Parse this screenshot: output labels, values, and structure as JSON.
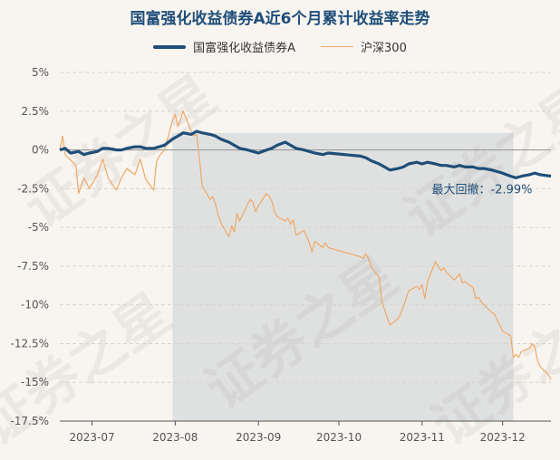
{
  "chart_data": {
    "type": "line",
    "title": "国富强化收益债券A近6个月累计收益率走势",
    "yticks": [
      "5%",
      "2.5%",
      "0%",
      "-2.5%",
      "-5%",
      "-7.5%",
      "-10%",
      "-12.5%",
      "-15%",
      "-17.5%"
    ],
    "ylim": [
      -17.5,
      5
    ],
    "xlim": [
      "2023-06-19",
      "2023-12-19"
    ],
    "xticks": [
      {
        "label": "2023-07",
        "date": "2023-07-01"
      },
      {
        "label": "2023-08",
        "date": "2023-08-01"
      },
      {
        "label": "2023-09",
        "date": "2023-09-01"
      },
      {
        "label": "2023-10",
        "date": "2023-10-01"
      },
      {
        "label": "2023-11",
        "date": "2023-11-01"
      },
      {
        "label": "2023-12",
        "date": "2023-12-01"
      }
    ],
    "legend_position": "top-center",
    "grid": "horizontal dashed",
    "annotation": {
      "text": "最大回撤：-2.99%"
    },
    "drawdown_range": [
      "2023-07-31",
      "2023-12-05"
    ],
    "series": [
      {
        "name": "国富强化收益债券A",
        "color": "#1f4e79",
        "points": [
          [
            "2023-06-19",
            0.0
          ],
          [
            "2023-06-21",
            0.1
          ],
          [
            "2023-06-23",
            -0.2
          ],
          [
            "2023-06-26",
            -0.1
          ],
          [
            "2023-06-28",
            -0.3
          ],
          [
            "2023-06-30",
            -0.2
          ],
          [
            "2023-07-03",
            -0.1
          ],
          [
            "2023-07-05",
            0.1
          ],
          [
            "2023-07-07",
            0.1
          ],
          [
            "2023-07-10",
            0.0
          ],
          [
            "2023-07-12",
            0.0
          ],
          [
            "2023-07-14",
            0.1
          ],
          [
            "2023-07-17",
            0.2
          ],
          [
            "2023-07-19",
            0.2
          ],
          [
            "2023-07-21",
            0.1
          ],
          [
            "2023-07-24",
            0.1
          ],
          [
            "2023-07-26",
            0.2
          ],
          [
            "2023-07-28",
            0.3
          ],
          [
            "2023-07-31",
            0.7
          ],
          [
            "2023-08-02",
            0.9
          ],
          [
            "2023-08-04",
            1.1
          ],
          [
            "2023-08-07",
            1.0
          ],
          [
            "2023-08-09",
            1.2
          ],
          [
            "2023-08-11",
            1.1
          ],
          [
            "2023-08-14",
            1.0
          ],
          [
            "2023-08-16",
            0.9
          ],
          [
            "2023-08-18",
            0.7
          ],
          [
            "2023-08-21",
            0.5
          ],
          [
            "2023-08-23",
            0.3
          ],
          [
            "2023-08-25",
            0.1
          ],
          [
            "2023-08-28",
            0.0
          ],
          [
            "2023-08-30",
            -0.1
          ],
          [
            "2023-09-01",
            -0.2
          ],
          [
            "2023-09-04",
            0.0
          ],
          [
            "2023-09-06",
            0.1
          ],
          [
            "2023-09-08",
            0.3
          ],
          [
            "2023-09-11",
            0.5
          ],
          [
            "2023-09-13",
            0.3
          ],
          [
            "2023-09-15",
            0.1
          ],
          [
            "2023-09-18",
            0.0
          ],
          [
            "2023-09-20",
            -0.1
          ],
          [
            "2023-09-22",
            -0.2
          ],
          [
            "2023-09-25",
            -0.3
          ],
          [
            "2023-09-27",
            -0.2
          ],
          [
            "2023-10-09",
            -0.4
          ],
          [
            "2023-10-11",
            -0.5
          ],
          [
            "2023-10-13",
            -0.7
          ],
          [
            "2023-10-16",
            -0.9
          ],
          [
            "2023-10-18",
            -1.1
          ],
          [
            "2023-10-20",
            -1.3
          ],
          [
            "2023-10-23",
            -1.2
          ],
          [
            "2023-10-25",
            -1.1
          ],
          [
            "2023-10-27",
            -0.9
          ],
          [
            "2023-10-30",
            -0.8
          ],
          [
            "2023-11-01",
            -0.9
          ],
          [
            "2023-11-03",
            -0.8
          ],
          [
            "2023-11-06",
            -0.9
          ],
          [
            "2023-11-08",
            -1.0
          ],
          [
            "2023-11-10",
            -1.0
          ],
          [
            "2023-11-13",
            -1.1
          ],
          [
            "2023-11-15",
            -1.0
          ],
          [
            "2023-11-17",
            -1.1
          ],
          [
            "2023-11-20",
            -1.1
          ],
          [
            "2023-11-22",
            -1.2
          ],
          [
            "2023-11-24",
            -1.2
          ],
          [
            "2023-11-27",
            -1.3
          ],
          [
            "2023-11-29",
            -1.4
          ],
          [
            "2023-12-01",
            -1.5
          ],
          [
            "2023-12-04",
            -1.7
          ],
          [
            "2023-12-06",
            -1.8
          ],
          [
            "2023-12-08",
            -1.7
          ],
          [
            "2023-12-11",
            -1.6
          ],
          [
            "2023-12-13",
            -1.5
          ],
          [
            "2023-12-15",
            -1.6
          ],
          [
            "2023-12-19",
            -1.7
          ]
        ]
      },
      {
        "name": "沪深300",
        "color": "#f0a868",
        "points": [
          [
            "2023-06-19",
            0.0
          ],
          [
            "2023-06-20",
            0.9
          ],
          [
            "2023-06-21",
            -0.3
          ],
          [
            "2023-06-25",
            -1.0
          ],
          [
            "2023-06-26",
            -2.8
          ],
          [
            "2023-06-28",
            -1.8
          ],
          [
            "2023-06-30",
            -2.5
          ],
          [
            "2023-07-03",
            -1.6
          ],
          [
            "2023-07-05",
            -0.6
          ],
          [
            "2023-07-07",
            -1.8
          ],
          [
            "2023-07-10",
            -2.6
          ],
          [
            "2023-07-12",
            -1.8
          ],
          [
            "2023-07-14",
            -1.2
          ],
          [
            "2023-07-17",
            -1.6
          ],
          [
            "2023-07-19",
            -0.6
          ],
          [
            "2023-07-21",
            -1.9
          ],
          [
            "2023-07-24",
            -2.6
          ],
          [
            "2023-07-25",
            -0.8
          ],
          [
            "2023-07-26",
            -0.4
          ],
          [
            "2023-07-28",
            0.0
          ],
          [
            "2023-07-31",
            1.9
          ],
          [
            "2023-08-01",
            2.3
          ],
          [
            "2023-08-02",
            1.5
          ],
          [
            "2023-08-03",
            2.0
          ],
          [
            "2023-08-04",
            2.5
          ],
          [
            "2023-08-07",
            1.2
          ],
          [
            "2023-08-08",
            0.9
          ],
          [
            "2023-08-09",
            1.0
          ],
          [
            "2023-08-10",
            -0.5
          ],
          [
            "2023-08-11",
            -2.3
          ],
          [
            "2023-08-14",
            -3.2
          ],
          [
            "2023-08-15",
            -3.0
          ],
          [
            "2023-08-16",
            -3.5
          ],
          [
            "2023-08-17",
            -4.2
          ],
          [
            "2023-08-18",
            -4.7
          ],
          [
            "2023-08-21",
            -5.6
          ],
          [
            "2023-08-22",
            -4.9
          ],
          [
            "2023-08-23",
            -5.3
          ],
          [
            "2023-08-24",
            -4.1
          ],
          [
            "2023-08-25",
            -4.6
          ],
          [
            "2023-08-28",
            -3.5
          ],
          [
            "2023-08-29",
            -3.2
          ],
          [
            "2023-08-30",
            -3.4
          ],
          [
            "2023-08-31",
            -4.0
          ],
          [
            "2023-09-01",
            -3.6
          ],
          [
            "2023-09-04",
            -2.8
          ],
          [
            "2023-09-05",
            -3.0
          ],
          [
            "2023-09-06",
            -3.3
          ],
          [
            "2023-09-07",
            -4.0
          ],
          [
            "2023-09-08",
            -4.3
          ],
          [
            "2023-09-11",
            -4.6
          ],
          [
            "2023-09-12",
            -4.4
          ],
          [
            "2023-09-13",
            -4.8
          ],
          [
            "2023-09-14",
            -4.5
          ],
          [
            "2023-09-15",
            -5.5
          ],
          [
            "2023-09-18",
            -5.2
          ],
          [
            "2023-09-19",
            -5.6
          ],
          [
            "2023-09-20",
            -6.0
          ],
          [
            "2023-09-21",
            -6.6
          ],
          [
            "2023-09-22",
            -5.9
          ],
          [
            "2023-09-25",
            -6.3
          ],
          [
            "2023-09-26",
            -6.0
          ],
          [
            "2023-09-27",
            -6.3
          ],
          [
            "2023-10-09",
            -6.9
          ],
          [
            "2023-10-10",
            -7.0
          ],
          [
            "2023-10-11",
            -6.7
          ],
          [
            "2023-10-12",
            -7.0
          ],
          [
            "2023-10-13",
            -7.6
          ],
          [
            "2023-10-16",
            -8.2
          ],
          [
            "2023-10-17",
            -9.8
          ],
          [
            "2023-10-18",
            -10.3
          ],
          [
            "2023-10-19",
            -10.8
          ],
          [
            "2023-10-20",
            -11.3
          ],
          [
            "2023-10-23",
            -10.9
          ],
          [
            "2023-10-24",
            -10.6
          ],
          [
            "2023-10-25",
            -10.1
          ],
          [
            "2023-10-26",
            -9.6
          ],
          [
            "2023-10-27",
            -9.1
          ],
          [
            "2023-10-30",
            -8.8
          ],
          [
            "2023-10-31",
            -9.0
          ],
          [
            "2023-11-01",
            -8.7
          ],
          [
            "2023-11-02",
            -9.6
          ],
          [
            "2023-11-03",
            -8.5
          ],
          [
            "2023-11-06",
            -7.2
          ],
          [
            "2023-11-07",
            -7.5
          ],
          [
            "2023-11-08",
            -7.8
          ],
          [
            "2023-11-09",
            -7.6
          ],
          [
            "2023-11-10",
            -7.9
          ],
          [
            "2023-11-13",
            -8.4
          ],
          [
            "2023-11-14",
            -8.2
          ],
          [
            "2023-11-15",
            -8.0
          ],
          [
            "2023-11-16",
            -8.6
          ],
          [
            "2023-11-17",
            -8.5
          ],
          [
            "2023-11-20",
            -8.9
          ],
          [
            "2023-11-21",
            -9.6
          ],
          [
            "2023-11-22",
            -9.5
          ],
          [
            "2023-11-23",
            -9.8
          ],
          [
            "2023-11-24",
            -10.0
          ],
          [
            "2023-11-27",
            -10.5
          ],
          [
            "2023-11-28",
            -10.6
          ],
          [
            "2023-11-29",
            -11.0
          ],
          [
            "2023-11-30",
            -11.3
          ],
          [
            "2023-12-01",
            -11.7
          ],
          [
            "2023-12-04",
            -12.0
          ],
          [
            "2023-12-05",
            -13.4
          ],
          [
            "2023-12-06",
            -13.2
          ],
          [
            "2023-12-07",
            -13.4
          ],
          [
            "2023-12-08",
            -13.0
          ],
          [
            "2023-12-11",
            -12.8
          ],
          [
            "2023-12-12",
            -12.5
          ],
          [
            "2023-12-13",
            -12.7
          ],
          [
            "2023-12-14",
            -13.6
          ],
          [
            "2023-12-15",
            -14.0
          ],
          [
            "2023-12-18",
            -14.5
          ],
          [
            "2023-12-19",
            -14.8
          ]
        ]
      }
    ]
  },
  "watermark_text": "证券之星"
}
